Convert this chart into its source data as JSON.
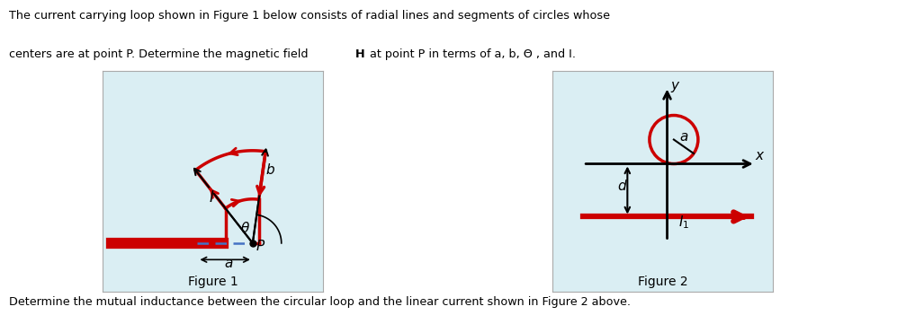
{
  "top_text_line1": "The current carrying loop shown in Figure 1 below consists of radial lines and segments of circles whose",
  "top_text_line2": "centers are at point P. Determine the magnetic field ",
  "top_text_H": "H",
  "top_text_line2b": " at point P in terms of a, b, Θ , and I.",
  "bottom_text": "Determine the mutual inductance between the circular loop and the linear current shown in Figure 2 above.",
  "fig1_label": "Figure 1",
  "fig2_label": "Figure 2",
  "bg_color": "#daeef3",
  "red_color": "#cc0000",
  "blue_dashed": "#4472c4",
  "black": "#000000"
}
